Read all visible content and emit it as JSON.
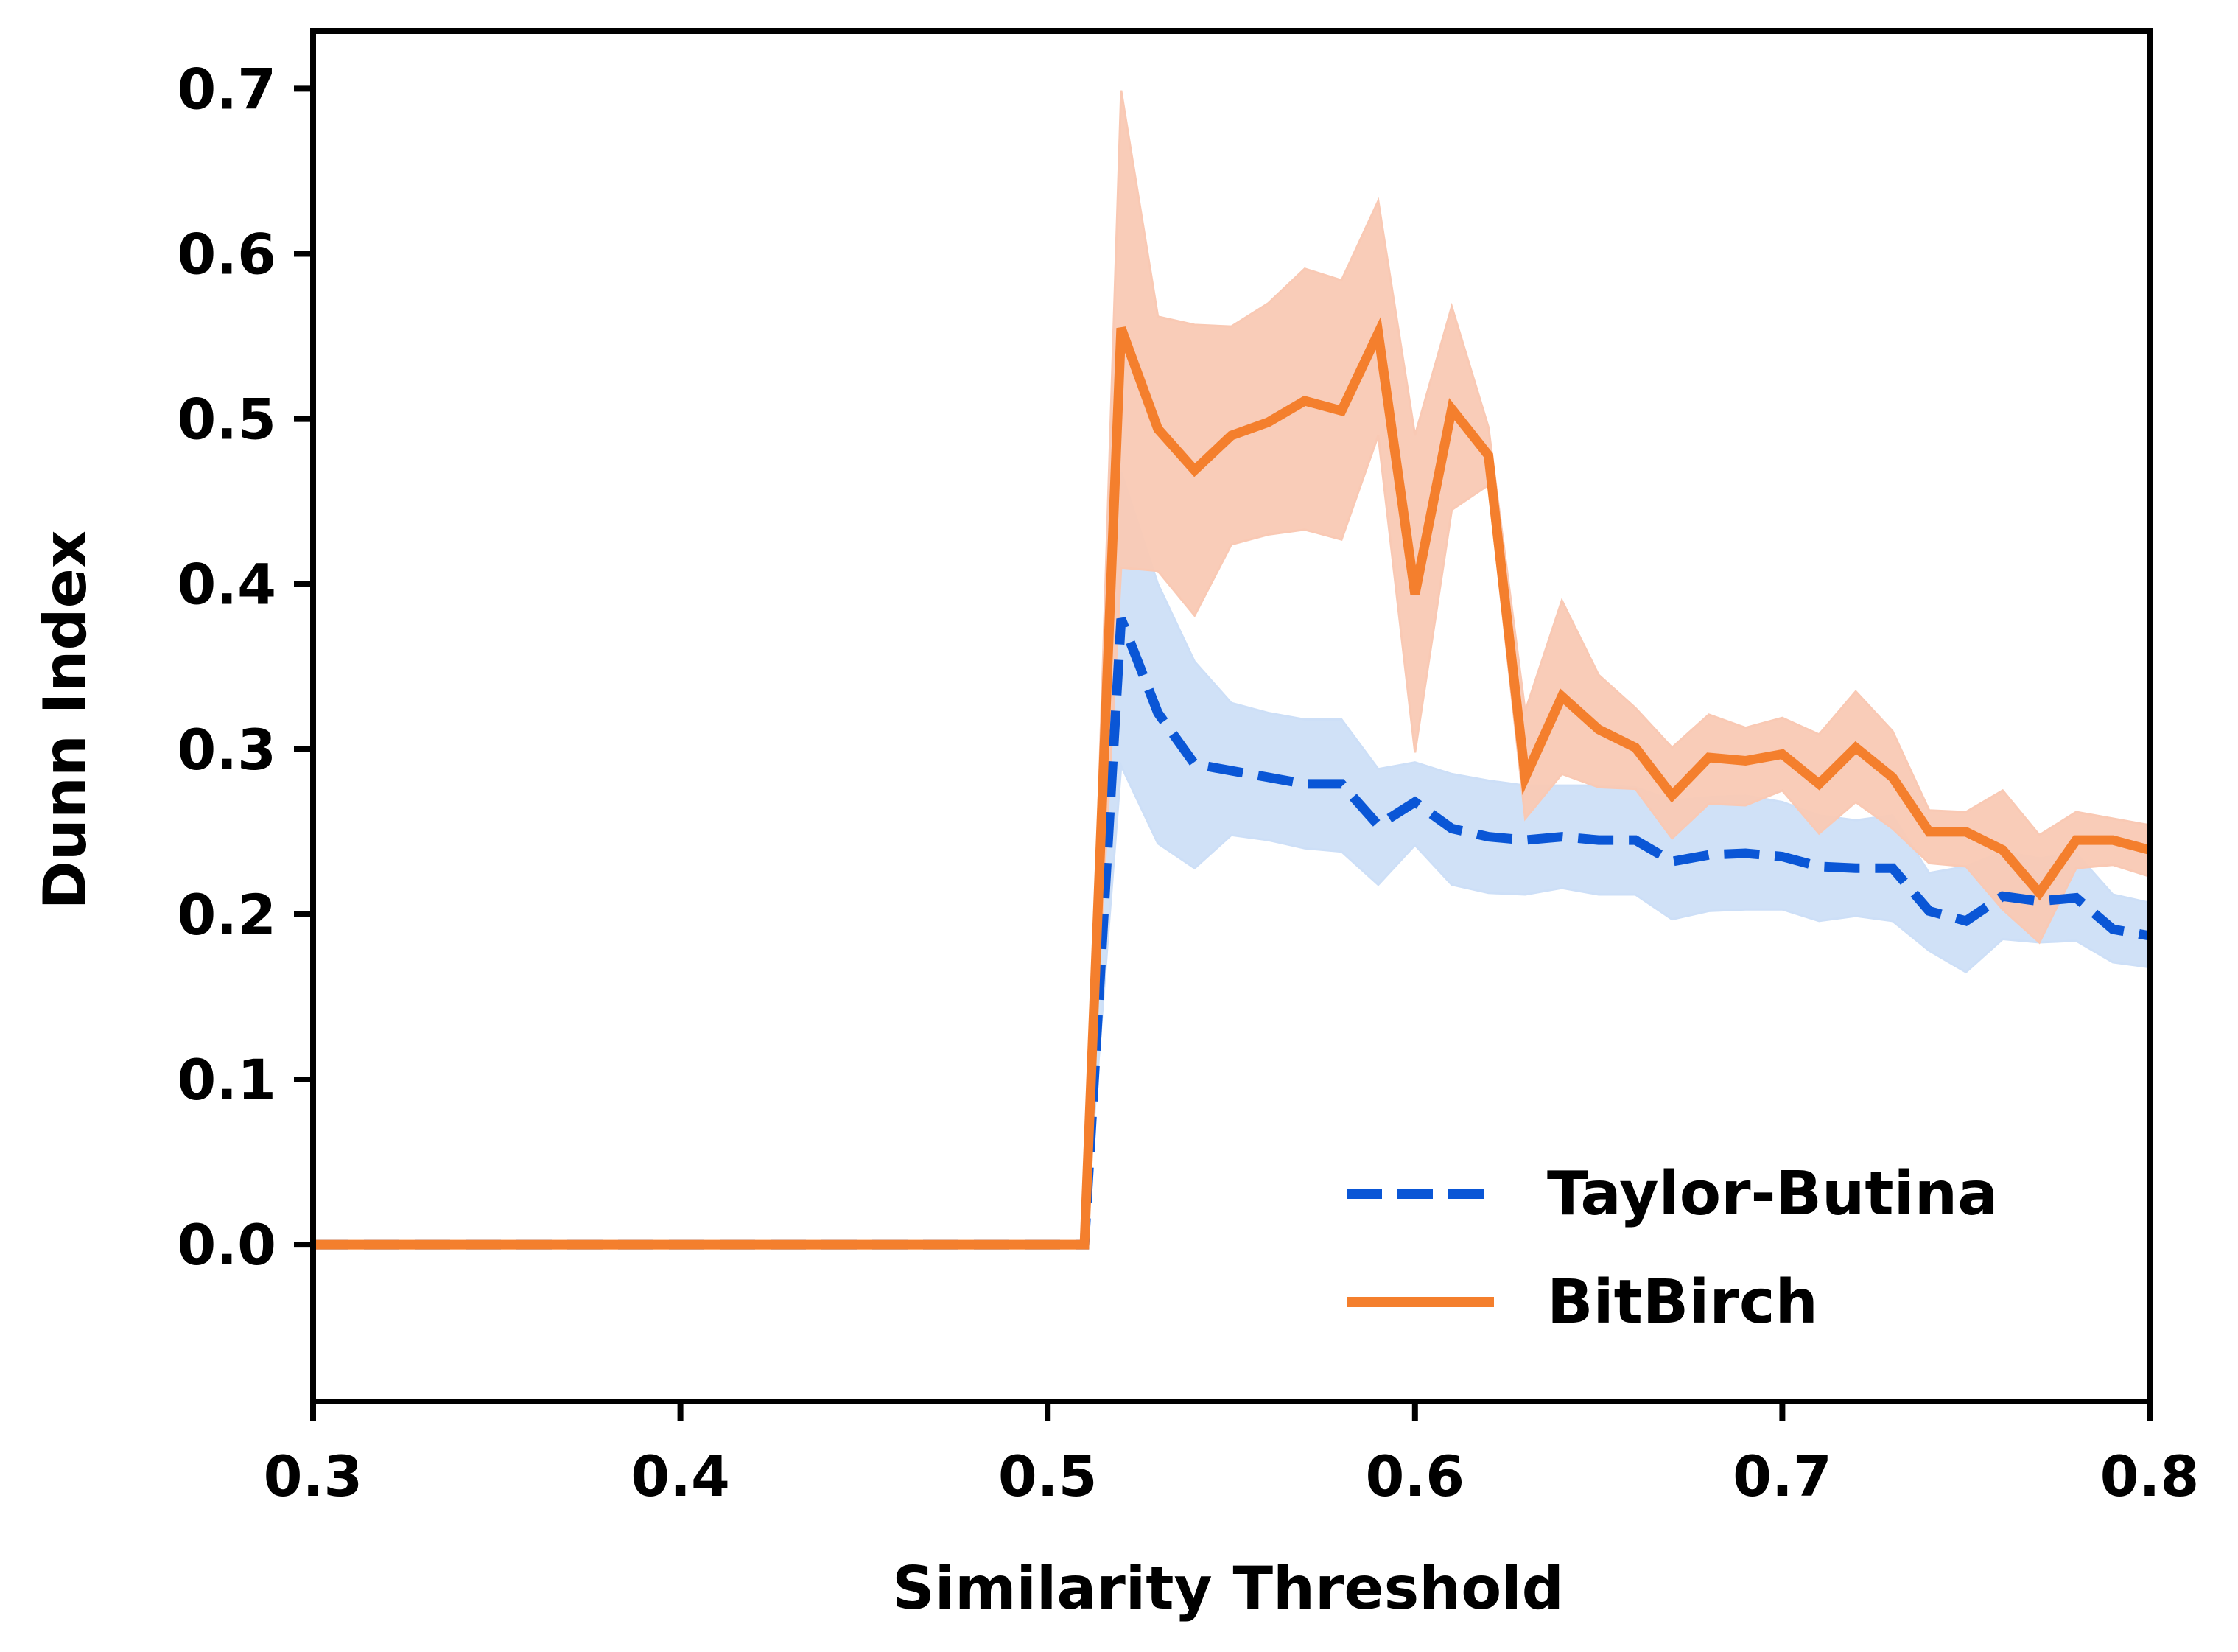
{
  "chart_data": {
    "type": "line",
    "xlabel": "Similarity Threshold",
    "ylabel": "Dunn Index",
    "xlim": [
      0.3,
      0.8
    ],
    "ylim": [
      -0.095,
      0.735
    ],
    "xticks": [
      0.3,
      0.4,
      0.5,
      0.6,
      0.7,
      0.8
    ],
    "xtick_labels": [
      "0.3",
      "0.4",
      "0.5",
      "0.6",
      "0.7",
      "0.8"
    ],
    "yticks": [
      0.0,
      0.1,
      0.2,
      0.3,
      0.4,
      0.5,
      0.6,
      0.7
    ],
    "ytick_labels": [
      "0.0",
      "0.1",
      "0.2",
      "0.3",
      "0.4",
      "0.5",
      "0.6",
      "0.7"
    ],
    "grid": false,
    "legend_position": "lower-right",
    "x": [
      0.3,
      0.31,
      0.32,
      0.33,
      0.34,
      0.35,
      0.36,
      0.37,
      0.38,
      0.39,
      0.4,
      0.41,
      0.42,
      0.43,
      0.44,
      0.45,
      0.46,
      0.47,
      0.48,
      0.49,
      0.5,
      0.51,
      0.52,
      0.53,
      0.54,
      0.55,
      0.56,
      0.57,
      0.58,
      0.59,
      0.6,
      0.61,
      0.62,
      0.63,
      0.64,
      0.65,
      0.66,
      0.67,
      0.68,
      0.69,
      0.7,
      0.71,
      0.72,
      0.73,
      0.74,
      0.75,
      0.76,
      0.77,
      0.78,
      0.79,
      0.8
    ],
    "series": [
      {
        "name": "Taylor-Butina",
        "color": "#0a56d6",
        "band_color": "#cddff7",
        "dash": "dashed",
        "values": [
          0,
          0,
          0,
          0,
          0,
          0,
          0,
          0,
          0,
          0,
          0,
          0,
          0,
          0,
          0,
          0,
          0,
          0,
          0,
          0,
          0,
          0,
          0.379,
          0.322,
          0.291,
          0.287,
          0.283,
          0.279,
          0.279,
          0.254,
          0.268,
          0.252,
          0.247,
          0.245,
          0.247,
          0.245,
          0.245,
          0.232,
          0.236,
          0.237,
          0.235,
          0.229,
          0.228,
          0.228,
          0.202,
          0.196,
          0.211,
          0.208,
          0.21,
          0.191,
          0.187
        ],
        "lower": [
          0,
          0,
          0,
          0,
          0,
          0,
          0,
          0,
          0,
          0,
          0,
          0,
          0,
          0,
          0,
          0,
          0,
          0,
          0,
          0,
          0,
          0,
          0.29,
          0.243,
          0.228,
          0.248,
          0.245,
          0.24,
          0.238,
          0.218,
          0.242,
          0.218,
          0.213,
          0.212,
          0.216,
          0.212,
          0.212,
          0.197,
          0.202,
          0.203,
          0.203,
          0.196,
          0.199,
          0.196,
          0.178,
          0.165,
          0.185,
          0.183,
          0.184,
          0.171,
          0.168
        ],
        "upper": [
          0,
          0,
          0,
          0,
          0,
          0,
          0,
          0,
          0,
          0,
          0,
          0,
          0,
          0,
          0,
          0,
          0,
          0,
          0,
          0,
          0,
          0,
          0.468,
          0.4,
          0.353,
          0.328,
          0.322,
          0.318,
          0.318,
          0.288,
          0.292,
          0.285,
          0.281,
          0.278,
          0.278,
          0.278,
          0.277,
          0.269,
          0.271,
          0.272,
          0.268,
          0.26,
          0.257,
          0.26,
          0.225,
          0.229,
          0.238,
          0.234,
          0.237,
          0.212,
          0.207
        ]
      },
      {
        "name": "BitBirch",
        "color": "#f47f2d",
        "band_color": "#f9c9b4",
        "dash": "solid",
        "values": [
          0,
          0,
          0,
          0,
          0,
          0,
          0,
          0,
          0,
          0,
          0,
          0,
          0,
          0,
          0,
          0,
          0,
          0,
          0,
          0,
          0,
          0,
          0.555,
          0.494,
          0.469,
          0.49,
          0.498,
          0.511,
          0.505,
          0.552,
          0.394,
          0.506,
          0.478,
          0.283,
          0.332,
          0.312,
          0.301,
          0.272,
          0.295,
          0.293,
          0.297,
          0.279,
          0.301,
          0.283,
          0.25,
          0.25,
          0.239,
          0.213,
          0.245,
          0.245,
          0.239
        ],
        "lower": [
          0,
          0,
          0,
          0,
          0,
          0,
          0,
          0,
          0,
          0,
          0,
          0,
          0,
          0,
          0,
          0,
          0,
          0,
          0,
          0,
          0,
          0,
          0.41,
          0.408,
          0.381,
          0.424,
          0.43,
          0.433,
          0.427,
          0.49,
          0.298,
          0.445,
          0.46,
          0.258,
          0.285,
          0.277,
          0.276,
          0.246,
          0.267,
          0.266,
          0.275,
          0.249,
          0.268,
          0.252,
          0.231,
          0.229,
          0.203,
          0.183,
          0.228,
          0.23,
          0.223
        ],
        "upper": [
          0,
          0,
          0,
          0,
          0,
          0,
          0,
          0,
          0,
          0,
          0,
          0,
          0,
          0,
          0,
          0,
          0,
          0,
          0,
          0,
          0,
          0,
          0.699,
          0.562,
          0.557,
          0.556,
          0.57,
          0.591,
          0.584,
          0.632,
          0.49,
          0.568,
          0.495,
          0.323,
          0.39,
          0.345,
          0.325,
          0.301,
          0.321,
          0.313,
          0.319,
          0.309,
          0.335,
          0.311,
          0.263,
          0.262,
          0.275,
          0.248,
          0.262,
          0.258,
          0.254
        ]
      }
    ]
  }
}
